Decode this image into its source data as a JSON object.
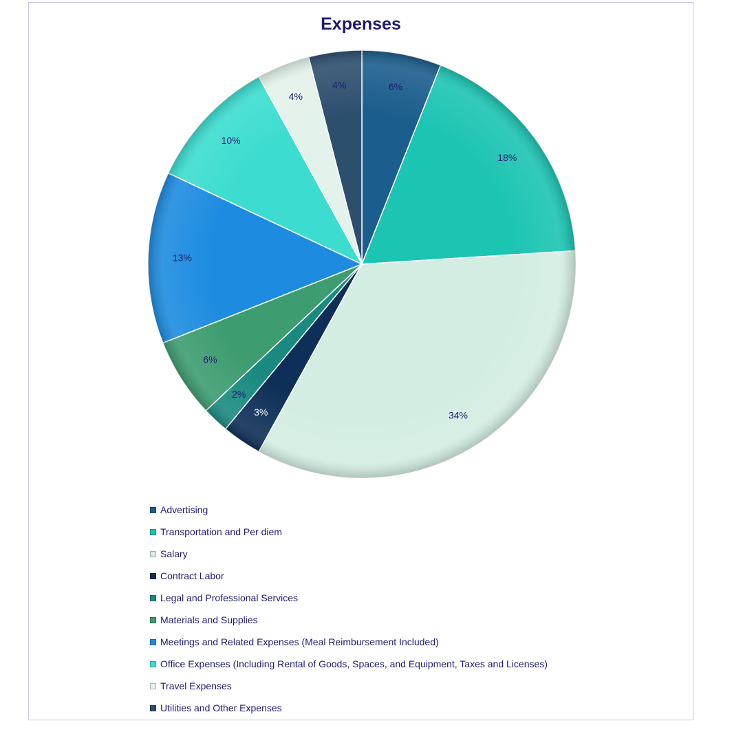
{
  "chart_data": {
    "type": "pie",
    "title": "Expenses",
    "series": [
      {
        "name": "Advertising",
        "label": "6%",
        "value": 6,
        "color": "#1b5d8c"
      },
      {
        "name": "Transportation and Per diem",
        "label": "18%",
        "value": 18,
        "color": "#1cc4b2"
      },
      {
        "name": "Salary",
        "label": "34%",
        "value": 34,
        "color": "#d3ede2"
      },
      {
        "name": "Contract Labor",
        "label": "3%",
        "value": 3,
        "color": "#0e2f57"
      },
      {
        "name": "Legal and Professional Services",
        "label": "2%",
        "value": 2,
        "color": "#1a8a80"
      },
      {
        "name": "Materials and Supplies",
        "label": "6%",
        "value": 6,
        "color": "#3d9c70"
      },
      {
        "name": "Meetings and Related Expenses (Meal Reimbursement Included)",
        "label": "13%",
        "value": 13,
        "color": "#1d8ce0"
      },
      {
        "name": "Office Expenses (Including Rental of Goods, Spaces, and Equipment, Taxes and Licenses)",
        "label": "10%",
        "value": 10,
        "color": "#3cddd0"
      },
      {
        "name": "Travel Expenses",
        "label": "4%",
        "value": 4,
        "color": "#e3f2ea"
      },
      {
        "name": "Utilities and Other Expenses",
        "label": "4%",
        "value": 4,
        "color": "#2d4f6e"
      }
    ],
    "legend_position": "bottom-left",
    "grid": false
  }
}
